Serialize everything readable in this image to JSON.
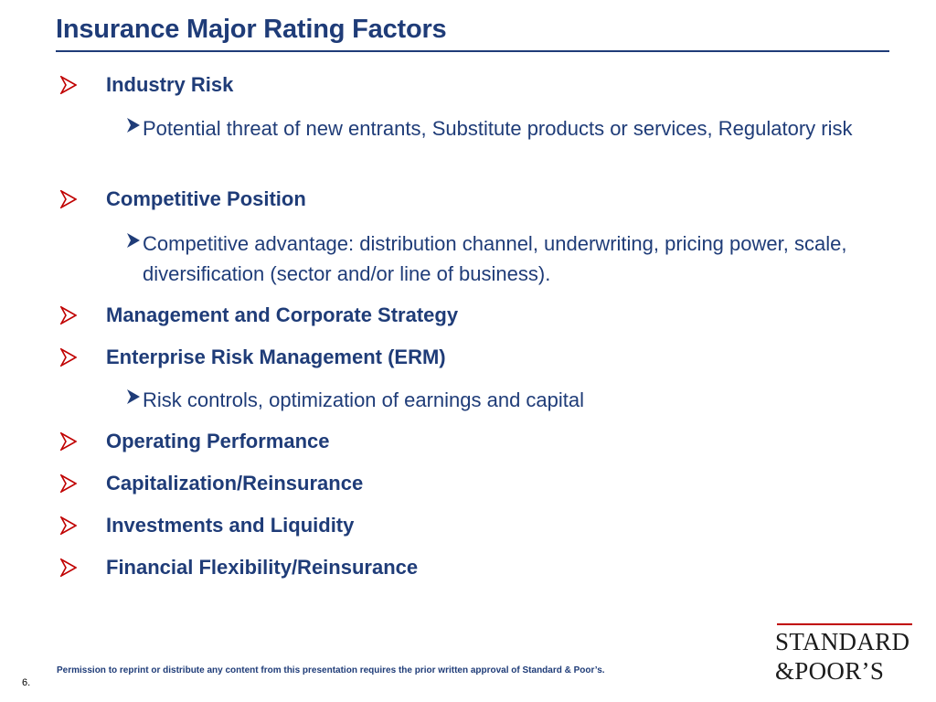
{
  "slide": {
    "title": "Insurance Major Rating Factors",
    "accent_color": "#1f3c78",
    "bullet_color": "#c00000",
    "items": [
      {
        "label": "Industry Risk"
      },
      {
        "label": "Potential threat of new entrants, Substitute products or services, Regulatory risk"
      },
      {
        "label": "Competitive Position"
      },
      {
        "label": "Competitive advantage: distribution channel, underwriting, pricing power, scale, diversification (sector and/or line of business)."
      },
      {
        "label": "Management and Corporate Strategy"
      },
      {
        "label": "Enterprise Risk Management (ERM)"
      },
      {
        "label": "Risk controls, optimization of earnings and capital"
      },
      {
        "label": "Operating Performance"
      },
      {
        "label": "Capitalization/Reinsurance"
      },
      {
        "label": "Investments and Liquidity"
      },
      {
        "label": "Financial Flexibility/Reinsurance"
      }
    ]
  },
  "footer": {
    "permission_text": "Permission to reprint or distribute any content from this presentation requires the prior written approval of Standard & Poor’s.",
    "page_number": "6."
  },
  "logo": {
    "line1": "STANDARD",
    "line2": "&POOR’S"
  }
}
